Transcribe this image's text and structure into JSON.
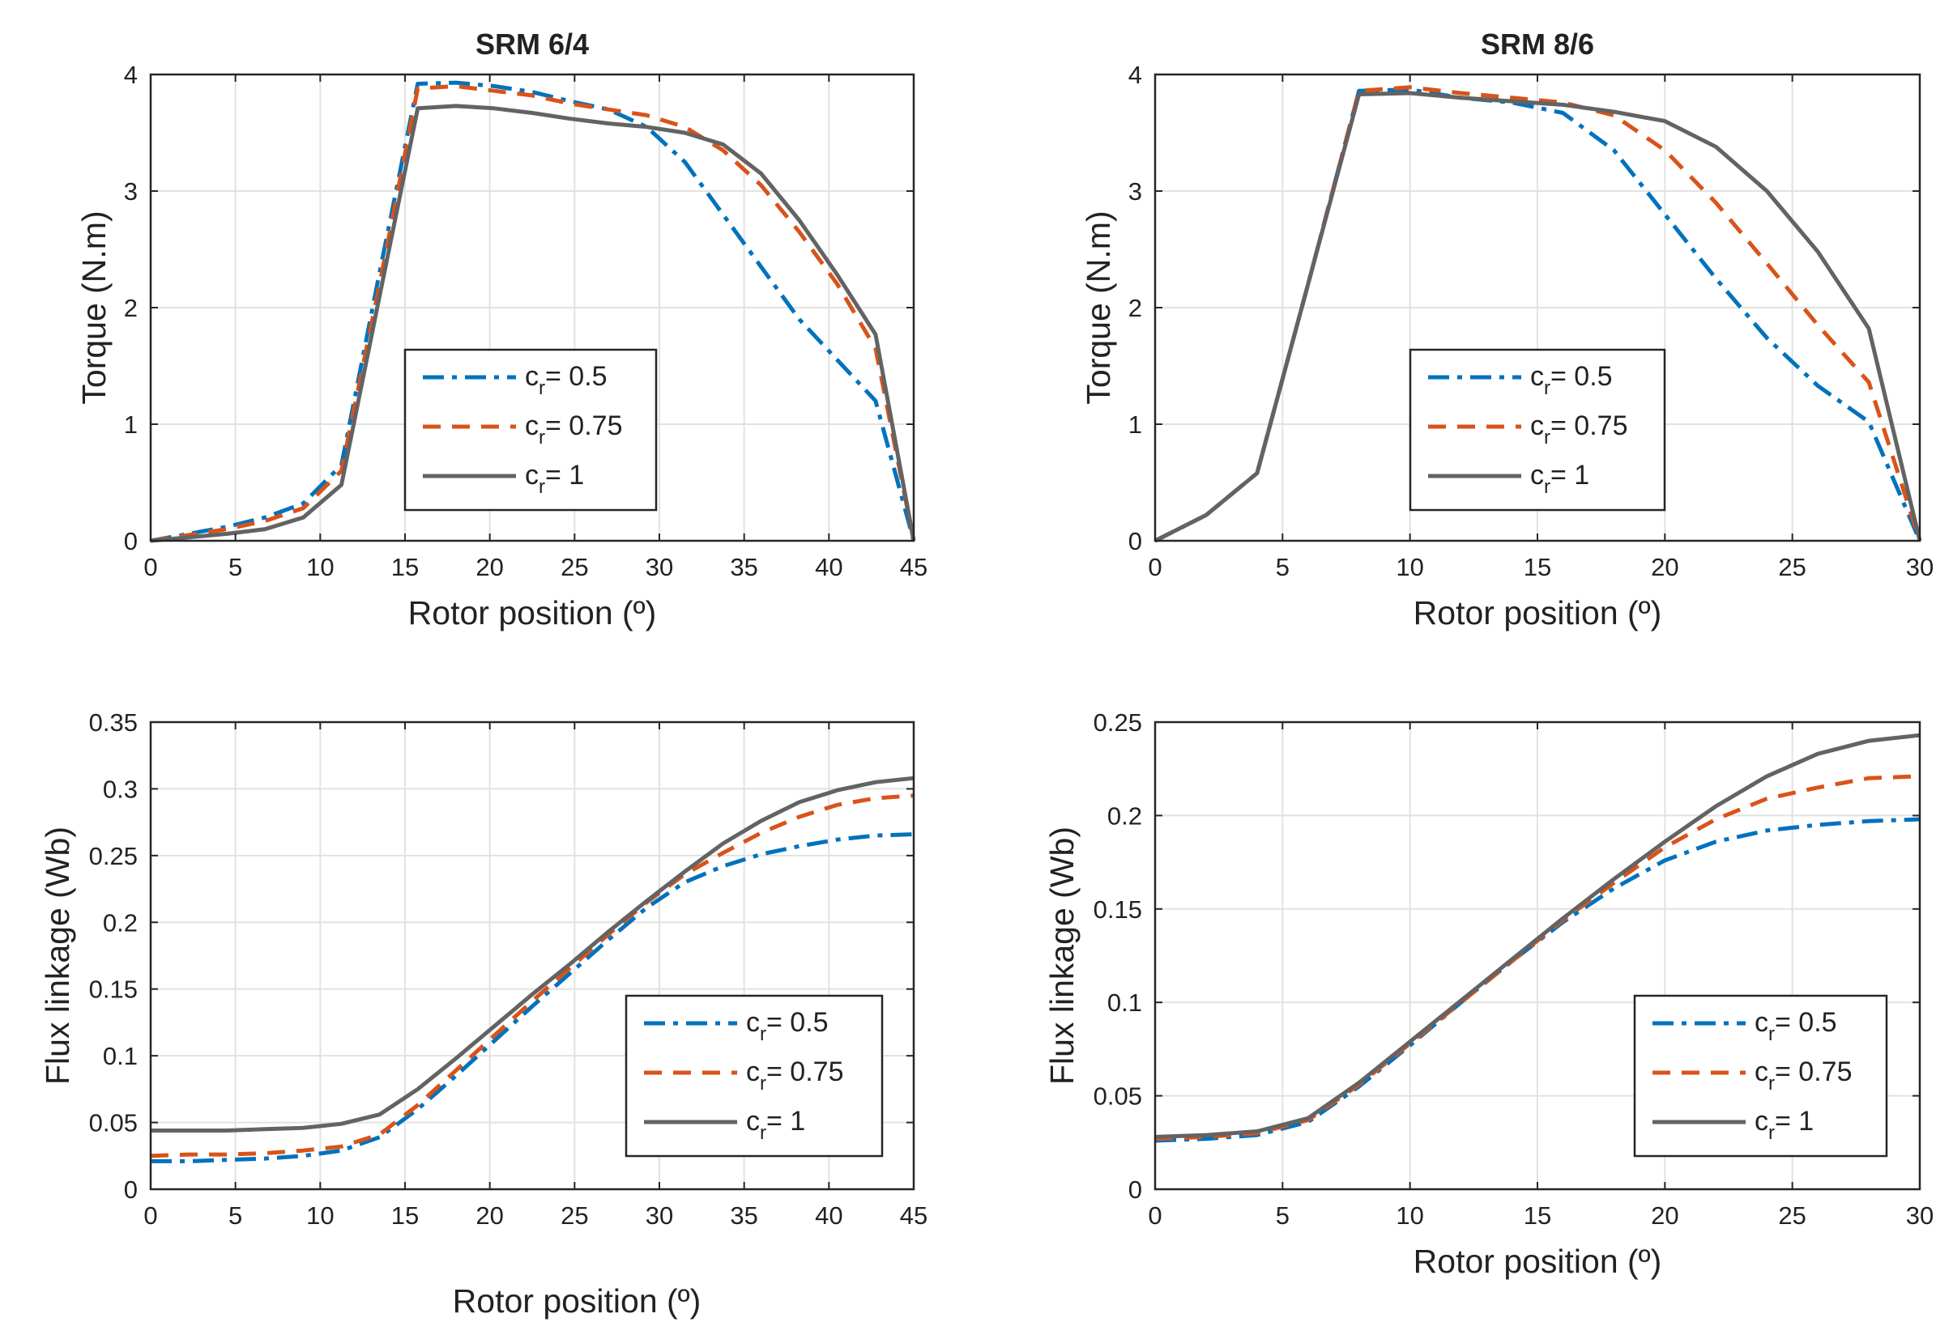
{
  "figure": {
    "bottom_xlabel": "Rotor position (º)",
    "legend_entries": [
      "c_r= 0.5",
      "c_r= 0.75",
      "c_r= 1"
    ]
  },
  "series_colors": {
    "c_r= 0.5": "#0072BD",
    "c_r= 0.75": "#D95319",
    "c_r= 1": "#636363"
  },
  "chart_data": [
    {
      "type": "line",
      "title": "SRM 6/4",
      "xlabel": "Rotor position (º)",
      "ylabel": "Torque (N.m)",
      "xlim": [
        0,
        45
      ],
      "ylim": [
        0,
        4
      ],
      "xticks": [
        0,
        5,
        10,
        15,
        20,
        25,
        30,
        35,
        40,
        45
      ],
      "yticks": [
        0,
        1,
        2,
        3,
        4
      ],
      "grid": true,
      "legend_position": "center",
      "series": [
        {
          "name": "c_r= 0.5",
          "style": "dashdot",
          "x": [
            0,
            2.25,
            4.5,
            6.75,
            9,
            11.25,
            13.5,
            15.75,
            18,
            20.25,
            22.5,
            24.75,
            27,
            29.25,
            31.5,
            33.75,
            36,
            38.25,
            40.5,
            42.75,
            45
          ],
          "y": [
            0,
            0.06,
            0.12,
            0.2,
            0.32,
            0.65,
            2.3,
            3.92,
            3.93,
            3.9,
            3.85,
            3.77,
            3.7,
            3.55,
            3.25,
            2.8,
            2.35,
            1.9,
            1.55,
            1.2,
            0
          ]
        },
        {
          "name": "c_r= 0.75",
          "style": "dashed",
          "x": [
            0,
            2.25,
            4.5,
            6.75,
            9,
            11.25,
            13.5,
            15.75,
            18,
            20.25,
            22.5,
            24.75,
            27,
            29.25,
            31.5,
            33.75,
            36,
            38.25,
            40.5,
            42.75,
            45
          ],
          "y": [
            0,
            0.05,
            0.1,
            0.17,
            0.28,
            0.6,
            2.2,
            3.88,
            3.9,
            3.86,
            3.82,
            3.75,
            3.7,
            3.65,
            3.55,
            3.35,
            3.05,
            2.65,
            2.2,
            1.65,
            0
          ]
        },
        {
          "name": "c_r= 1",
          "style": "solid",
          "x": [
            0,
            2.25,
            4.5,
            6.75,
            9,
            11.25,
            13.5,
            15.75,
            18,
            20.25,
            22.5,
            24.75,
            27,
            29.25,
            31.5,
            33.75,
            36,
            38.25,
            40.5,
            42.75,
            45
          ],
          "y": [
            0,
            0.03,
            0.06,
            0.1,
            0.2,
            0.48,
            2.1,
            3.71,
            3.73,
            3.71,
            3.67,
            3.62,
            3.58,
            3.55,
            3.5,
            3.4,
            3.15,
            2.75,
            2.28,
            1.77,
            0
          ]
        }
      ]
    },
    {
      "type": "line",
      "title": "SRM 8/6",
      "xlabel": "Rotor position (º)",
      "ylabel": "Torque (N.m)",
      "xlim": [
        0,
        30
      ],
      "ylim": [
        0,
        4
      ],
      "xticks": [
        0,
        5,
        10,
        15,
        20,
        25,
        30
      ],
      "yticks": [
        0,
        1,
        2,
        3,
        4
      ],
      "grid": true,
      "legend_position": "center",
      "series": [
        {
          "name": "c_r= 0.5",
          "style": "dashdot",
          "x": [
            0,
            2,
            4,
            6,
            8,
            10,
            12,
            14,
            16,
            18,
            20,
            22,
            24,
            26,
            28,
            30
          ],
          "y": [
            0,
            0.22,
            0.58,
            2.2,
            3.86,
            3.87,
            3.8,
            3.76,
            3.67,
            3.35,
            2.8,
            2.25,
            1.74,
            1.33,
            1.02,
            0
          ]
        },
        {
          "name": "c_r= 0.75",
          "style": "dashed",
          "x": [
            0,
            2,
            4,
            6,
            8,
            10,
            12,
            14,
            16,
            18,
            20,
            22,
            24,
            26,
            28,
            30
          ],
          "y": [
            0,
            0.22,
            0.58,
            2.2,
            3.86,
            3.89,
            3.84,
            3.8,
            3.76,
            3.65,
            3.35,
            2.9,
            2.38,
            1.85,
            1.36,
            0
          ]
        },
        {
          "name": "c_r= 1",
          "style": "solid",
          "x": [
            0,
            2,
            4,
            6,
            8,
            10,
            12,
            14,
            16,
            18,
            20,
            22,
            24,
            26,
            28,
            30
          ],
          "y": [
            0,
            0.22,
            0.58,
            2.2,
            3.83,
            3.84,
            3.8,
            3.77,
            3.74,
            3.68,
            3.6,
            3.38,
            3.0,
            2.48,
            1.82,
            0
          ]
        }
      ]
    },
    {
      "type": "line",
      "title": "",
      "xlabel": "",
      "ylabel": "Flux linkage (Wb)",
      "xlim": [
        0,
        45
      ],
      "ylim": [
        0,
        0.35
      ],
      "xticks": [
        0,
        5,
        10,
        15,
        20,
        25,
        30,
        35,
        40,
        45
      ],
      "yticks": [
        0,
        0.05,
        0.1,
        0.15,
        0.2,
        0.25,
        0.3,
        0.35
      ],
      "grid": true,
      "legend_position": "bottom-right",
      "series": [
        {
          "name": "c_r= 0.5",
          "style": "dashdot",
          "x": [
            0,
            2.25,
            4.5,
            6.75,
            9,
            11.25,
            13.5,
            15.75,
            18,
            20.25,
            22.5,
            24.75,
            27,
            29.25,
            31.5,
            33.75,
            36,
            38.25,
            40.5,
            42.75,
            45
          ],
          "y": [
            0.021,
            0.021,
            0.022,
            0.023,
            0.025,
            0.029,
            0.039,
            0.06,
            0.085,
            0.111,
            0.137,
            0.162,
            0.187,
            0.211,
            0.23,
            0.242,
            0.251,
            0.257,
            0.262,
            0.265,
            0.266
          ]
        },
        {
          "name": "c_r= 0.75",
          "style": "dashed",
          "x": [
            0,
            2.25,
            4.5,
            6.75,
            9,
            11.25,
            13.5,
            15.75,
            18,
            20.25,
            22.5,
            24.75,
            27,
            29.25,
            31.5,
            33.75,
            36,
            38.25,
            40.5,
            42.75,
            45
          ],
          "y": [
            0.025,
            0.026,
            0.026,
            0.027,
            0.029,
            0.032,
            0.041,
            0.063,
            0.089,
            0.115,
            0.141,
            0.166,
            0.191,
            0.215,
            0.236,
            0.252,
            0.267,
            0.279,
            0.288,
            0.293,
            0.295
          ]
        },
        {
          "name": "c_r= 1",
          "style": "solid",
          "x": [
            0,
            2.25,
            4.5,
            6.75,
            9,
            11.25,
            13.5,
            15.75,
            18,
            20.25,
            22.5,
            24.75,
            27,
            29.25,
            31.5,
            33.75,
            36,
            38.25,
            40.5,
            42.75,
            45
          ],
          "y": [
            0.044,
            0.044,
            0.044,
            0.045,
            0.046,
            0.049,
            0.056,
            0.075,
            0.098,
            0.122,
            0.146,
            0.169,
            0.193,
            0.216,
            0.238,
            0.259,
            0.276,
            0.29,
            0.299,
            0.305,
            0.308
          ]
        }
      ]
    },
    {
      "type": "line",
      "title": "",
      "xlabel": "Rotor position (º)",
      "ylabel": "Flux linkage (Wb)",
      "xlim": [
        0,
        30
      ],
      "ylim": [
        0,
        0.25
      ],
      "xticks": [
        0,
        5,
        10,
        15,
        20,
        25,
        30
      ],
      "yticks": [
        0,
        0.05,
        0.1,
        0.15,
        0.2,
        0.25
      ],
      "grid": true,
      "legend_position": "bottom-right",
      "series": [
        {
          "name": "c_r= 0.5",
          "style": "dashdot",
          "x": [
            0,
            2,
            4,
            6,
            8,
            10,
            12,
            14,
            16,
            18,
            20,
            22,
            24,
            26,
            28,
            30
          ],
          "y": [
            0.026,
            0.027,
            0.029,
            0.036,
            0.055,
            0.077,
            0.1,
            0.122,
            0.143,
            0.161,
            0.176,
            0.186,
            0.192,
            0.195,
            0.197,
            0.198
          ]
        },
        {
          "name": "c_r= 0.75",
          "style": "dashed",
          "x": [
            0,
            2,
            4,
            6,
            8,
            10,
            12,
            14,
            16,
            18,
            20,
            22,
            24,
            26,
            28,
            30
          ],
          "y": [
            0.027,
            0.028,
            0.03,
            0.037,
            0.056,
            0.078,
            0.1,
            0.122,
            0.144,
            0.164,
            0.183,
            0.198,
            0.209,
            0.215,
            0.22,
            0.221
          ]
        },
        {
          "name": "c_r= 1",
          "style": "solid",
          "x": [
            0,
            2,
            4,
            6,
            8,
            10,
            12,
            14,
            16,
            18,
            20,
            22,
            24,
            26,
            28,
            30
          ],
          "y": [
            0.028,
            0.029,
            0.031,
            0.038,
            0.057,
            0.079,
            0.101,
            0.123,
            0.145,
            0.166,
            0.186,
            0.205,
            0.221,
            0.233,
            0.24,
            0.243
          ]
        }
      ]
    }
  ]
}
